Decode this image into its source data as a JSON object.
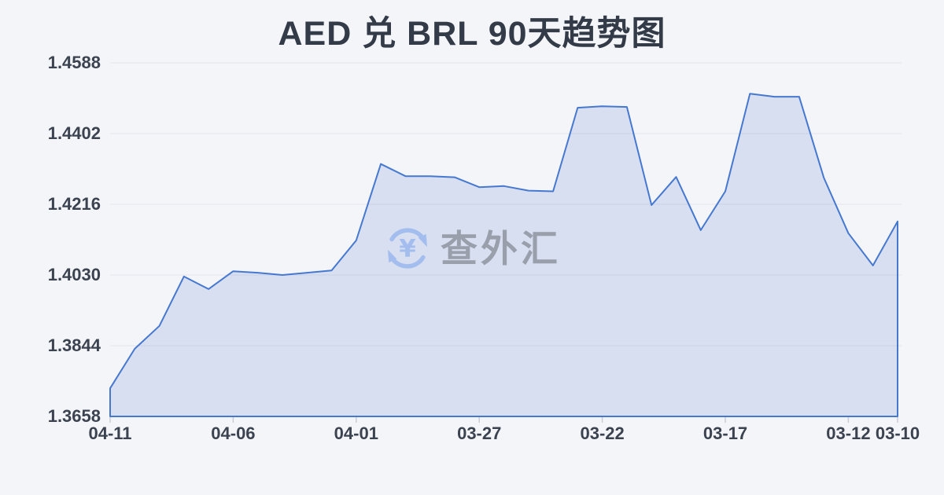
{
  "title": "AED 兑 BRL 90天趋势图",
  "watermark": {
    "text": "查外汇",
    "icon": "currency-exchange-icon",
    "icon_symbol": "¥"
  },
  "colors": {
    "background": "#f4f5f8",
    "line": "#4678d0",
    "fill": "rgba(70,120,208,0.17)",
    "grid": "#e6e8ed",
    "axis_tick": "#c9cdd6",
    "label_text": "#3b4250",
    "title_text": "#333b48",
    "watermark_text": "#999fab",
    "watermark_icon": "#a3beee"
  },
  "chart_data": {
    "type": "area",
    "title": "AED 兑 BRL 90天趋势图",
    "x": [
      "04-11",
      "04-10",
      "04-09",
      "04-08",
      "04-07",
      "04-06",
      "04-05",
      "04-04",
      "04-03",
      "04-02",
      "04-01",
      "03-31",
      "03-30",
      "03-29",
      "03-28",
      "03-27",
      "03-26",
      "03-25",
      "03-24",
      "03-23",
      "03-22",
      "03-21",
      "03-20",
      "03-19",
      "03-18",
      "03-17",
      "03-16",
      "03-15",
      "03-14",
      "03-13",
      "03-12",
      "03-11",
      "03-10"
    ],
    "values": [
      1.3732,
      1.3836,
      1.3896,
      1.4026,
      1.3993,
      1.404,
      1.4036,
      1.403,
      1.4036,
      1.4042,
      1.4121,
      1.4322,
      1.429,
      1.429,
      1.4287,
      1.4261,
      1.4264,
      1.4252,
      1.425,
      1.447,
      1.4474,
      1.4472,
      1.4214,
      1.4288,
      1.4148,
      1.425,
      1.4507,
      1.4499,
      1.4499,
      1.4286,
      1.414,
      1.4055,
      1.4171
    ],
    "y_tick_labels": [
      "1.4588",
      "1.4402",
      "1.4216",
      "1.4030",
      "1.3844",
      "1.3658"
    ],
    "x_ticks": [
      {
        "label": "04-11",
        "index": 0
      },
      {
        "label": "04-06",
        "index": 5
      },
      {
        "label": "04-01",
        "index": 10
      },
      {
        "label": "03-27",
        "index": 15
      },
      {
        "label": "03-22",
        "index": 20
      },
      {
        "label": "03-17",
        "index": 25
      },
      {
        "label": "03-12",
        "index": 30
      },
      {
        "label": "03-10",
        "index": 32
      }
    ],
    "ylim": [
      1.3658,
      1.4588
    ],
    "xlabel": "",
    "ylabel": "",
    "grid": "horizontal",
    "legend": "none",
    "note": "x axis runs newest date (04-11) on the left to oldest (03-10) on the right"
  }
}
